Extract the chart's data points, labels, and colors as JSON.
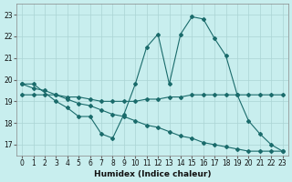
{
  "xlabel": "Humidex (Indice chaleur)",
  "background_color": "#c8eeee",
  "grid_color": "#aad4d4",
  "line_color": "#1a6b6b",
  "xlim": [
    -0.5,
    23.5
  ],
  "ylim": [
    16.5,
    23.5
  ],
  "yticks": [
    17,
    18,
    19,
    20,
    21,
    22,
    23
  ],
  "xticks": [
    0,
    1,
    2,
    3,
    4,
    5,
    6,
    7,
    8,
    9,
    10,
    11,
    12,
    13,
    14,
    15,
    16,
    17,
    18,
    19,
    20,
    21,
    22,
    23
  ],
  "line1_x": [
    0,
    1,
    3,
    4,
    5,
    6,
    7,
    8,
    9,
    10,
    11,
    12,
    13,
    14,
    15,
    16,
    17,
    18,
    19,
    20,
    21,
    22,
    23
  ],
  "line1_y": [
    19.8,
    19.8,
    19.0,
    18.7,
    18.3,
    18.3,
    17.5,
    17.3,
    18.4,
    19.8,
    21.5,
    22.1,
    19.8,
    22.1,
    22.9,
    22.8,
    21.9,
    21.1,
    19.3,
    18.1,
    17.5,
    17.0,
    16.7
  ],
  "line2_x": [
    0,
    1,
    2,
    3,
    4,
    5,
    6,
    7,
    8,
    9,
    10,
    11,
    12,
    13,
    14,
    15,
    16,
    17,
    18,
    19,
    20,
    21,
    22,
    23
  ],
  "line2_y": [
    19.3,
    19.3,
    19.3,
    19.3,
    19.2,
    19.2,
    19.1,
    19.0,
    19.0,
    19.0,
    19.0,
    19.1,
    19.1,
    19.2,
    19.2,
    19.3,
    19.3,
    19.3,
    19.3,
    19.3,
    19.3,
    19.3,
    19.3,
    19.3
  ],
  "line3_x": [
    0,
    1,
    2,
    3,
    4,
    5,
    6,
    7,
    8,
    9,
    10,
    11,
    12,
    13,
    14,
    15,
    16,
    17,
    18,
    19,
    20,
    21,
    22,
    23
  ],
  "line3_y": [
    19.8,
    19.6,
    19.5,
    19.3,
    19.1,
    18.9,
    18.8,
    18.6,
    18.4,
    18.3,
    18.1,
    17.9,
    17.8,
    17.6,
    17.4,
    17.3,
    17.1,
    17.0,
    16.9,
    16.8,
    16.7,
    16.7,
    16.7,
    16.7
  ]
}
